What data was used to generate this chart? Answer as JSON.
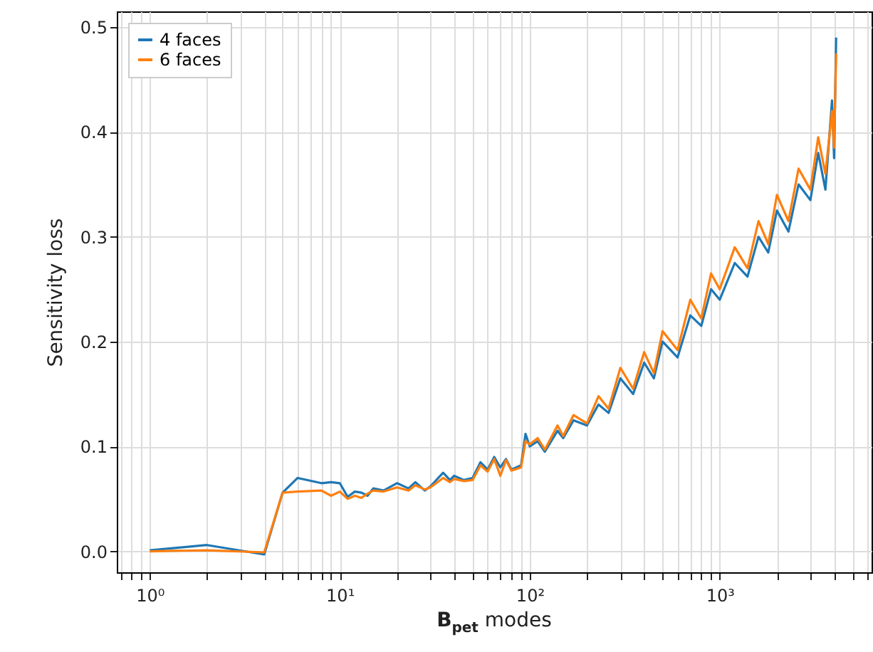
{
  "chart_data": {
    "type": "line",
    "xlabel": "B$_{pet}$ modes",
    "ylabel": "Sensitivity loss",
    "log": "x",
    "grid": true,
    "legend": "top left",
    "line_style": "solid",
    "marker": "none",
    "x": [
      1,
      2,
      4,
      5,
      6,
      8,
      9,
      10,
      11,
      12,
      13,
      14,
      15,
      17,
      20,
      23,
      25,
      28,
      30,
      35,
      38,
      40,
      45,
      50,
      55,
      60,
      65,
      70,
      75,
      80,
      90,
      95,
      100,
      110,
      120,
      140,
      150,
      170,
      200,
      230,
      260,
      300,
      350,
      400,
      450,
      500,
      600,
      700,
      800,
      900,
      1000,
      1200,
      1400,
      1600,
      1800,
      2000,
      2300,
      2600,
      3000,
      3300,
      3600,
      3900,
      4000,
      4100
    ],
    "series": [
      {
        "name": "4 faces",
        "color": "#1f77b4",
        "values": [
          0.001,
          0.006,
          -0.003,
          0.056,
          0.07,
          0.065,
          0.066,
          0.065,
          0.052,
          0.057,
          0.056,
          0.053,
          0.06,
          0.058,
          0.065,
          0.06,
          0.066,
          0.058,
          0.062,
          0.075,
          0.068,
          0.072,
          0.068,
          0.07,
          0.085,
          0.078,
          0.09,
          0.08,
          0.088,
          0.078,
          0.082,
          0.112,
          0.1,
          0.105,
          0.095,
          0.115,
          0.108,
          0.125,
          0.12,
          0.14,
          0.132,
          0.165,
          0.15,
          0.18,
          0.165,
          0.2,
          0.185,
          0.225,
          0.215,
          0.25,
          0.24,
          0.275,
          0.262,
          0.3,
          0.285,
          0.325,
          0.305,
          0.35,
          0.335,
          0.38,
          0.345,
          0.43,
          0.375,
          0.49
        ]
      },
      {
        "name": "6 faces",
        "color": "#ff7f0e",
        "values": [
          0.0,
          0.001,
          -0.001,
          0.056,
          0.057,
          0.058,
          0.053,
          0.057,
          0.05,
          0.053,
          0.051,
          0.055,
          0.058,
          0.057,
          0.061,
          0.058,
          0.063,
          0.059,
          0.061,
          0.07,
          0.066,
          0.069,
          0.067,
          0.068,
          0.082,
          0.076,
          0.088,
          0.072,
          0.087,
          0.077,
          0.08,
          0.105,
          0.102,
          0.108,
          0.097,
          0.12,
          0.11,
          0.13,
          0.122,
          0.148,
          0.136,
          0.175,
          0.155,
          0.19,
          0.17,
          0.21,
          0.192,
          0.24,
          0.222,
          0.265,
          0.25,
          0.29,
          0.27,
          0.315,
          0.293,
          0.34,
          0.315,
          0.365,
          0.345,
          0.395,
          0.36,
          0.42,
          0.385,
          0.475
        ]
      }
    ],
    "xlim": [
      0.67,
      6300
    ],
    "xticks": [
      {
        "value": 0.7,
        "label": null
      },
      {
        "value": 0.8,
        "label": null
      },
      {
        "value": 0.9,
        "label": null
      },
      {
        "value": 1,
        "label": "10⁰"
      },
      {
        "value": 2,
        "label": null
      },
      {
        "value": 3,
        "label": null
      },
      {
        "value": 4,
        "label": null
      },
      {
        "value": 5,
        "label": null
      },
      {
        "value": 6,
        "label": null
      },
      {
        "value": 7,
        "label": null
      },
      {
        "value": 8,
        "label": null
      },
      {
        "value": 9,
        "label": null
      },
      {
        "value": 10,
        "label": "10¹"
      },
      {
        "value": 20,
        "label": null
      },
      {
        "value": 30,
        "label": null
      },
      {
        "value": 40,
        "label": null
      },
      {
        "value": 50,
        "label": null
      },
      {
        "value": 60,
        "label": null
      },
      {
        "value": 70,
        "label": null
      },
      {
        "value": 80,
        "label": null
      },
      {
        "value": 90,
        "label": null
      },
      {
        "value": 100,
        "label": "10²"
      },
      {
        "value": 200,
        "label": null
      },
      {
        "value": 300,
        "label": null
      },
      {
        "value": 400,
        "label": null
      },
      {
        "value": 500,
        "label": null
      },
      {
        "value": 600,
        "label": null
      },
      {
        "value": 700,
        "label": null
      },
      {
        "value": 800,
        "label": null
      },
      {
        "value": 900,
        "label": null
      },
      {
        "value": 1000,
        "label": "10³"
      },
      {
        "value": 2000,
        "label": null
      },
      {
        "value": 3000,
        "label": null
      },
      {
        "value": 4000,
        "label": null
      },
      {
        "value": 5000,
        "label": null
      },
      {
        "value": 6000,
        "label": null
      }
    ],
    "ylim": [
      -0.02,
      0.515
    ],
    "yticks": [
      {
        "value": 0,
        "label": "0.0"
      },
      0.1,
      0.2,
      0.3,
      0.4,
      0.5
    ]
  }
}
